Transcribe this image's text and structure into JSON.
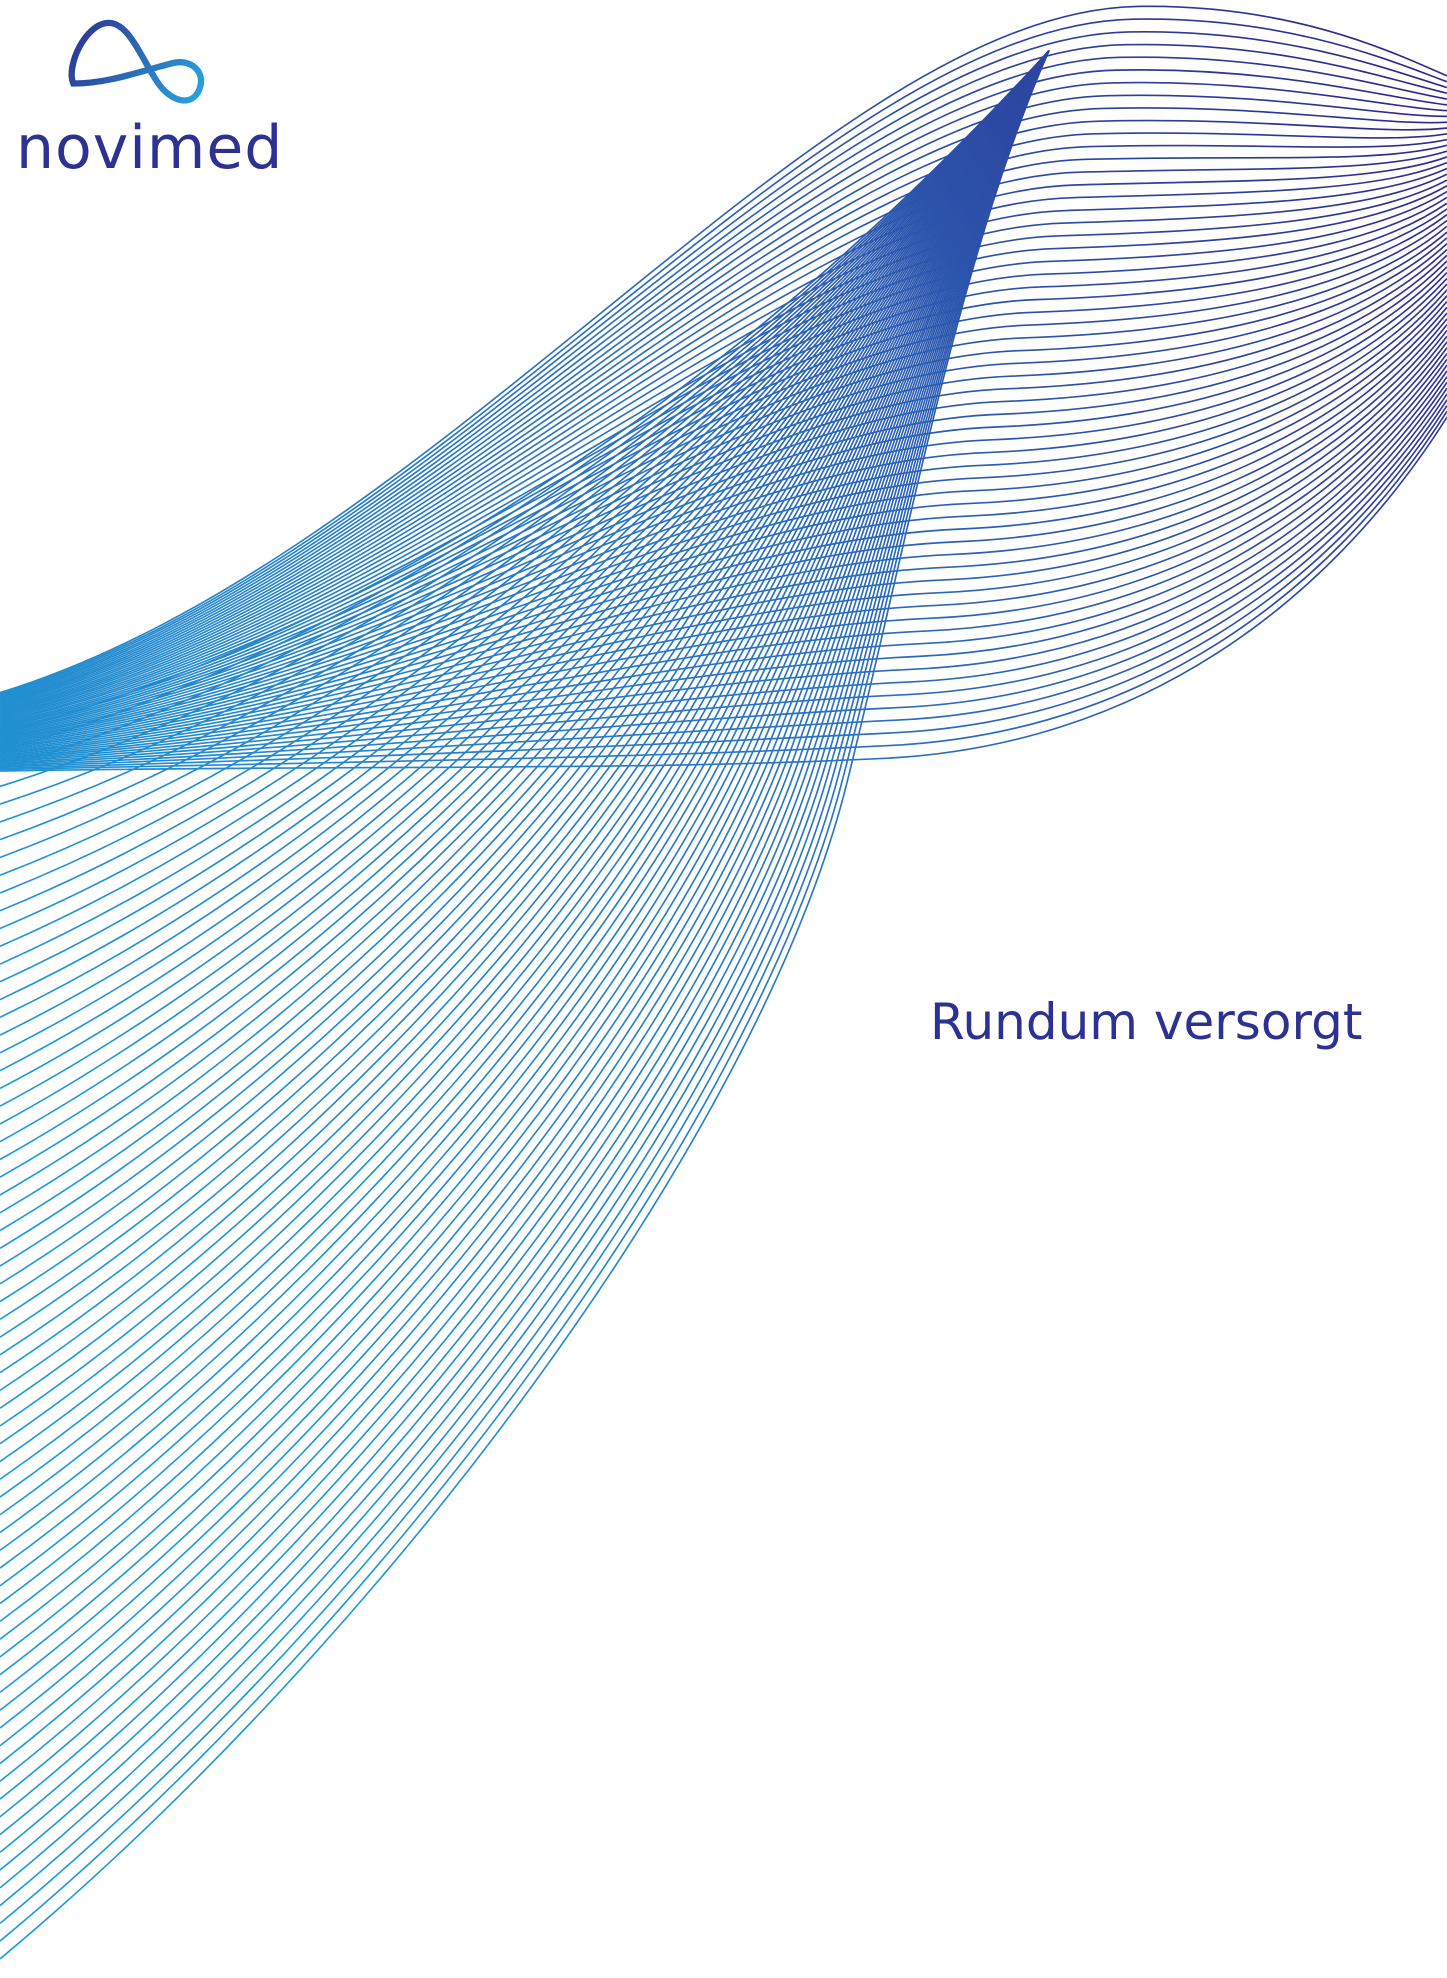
{
  "logo": {
    "name": "novimed"
  },
  "tagline": "Rundum versorgt"
}
